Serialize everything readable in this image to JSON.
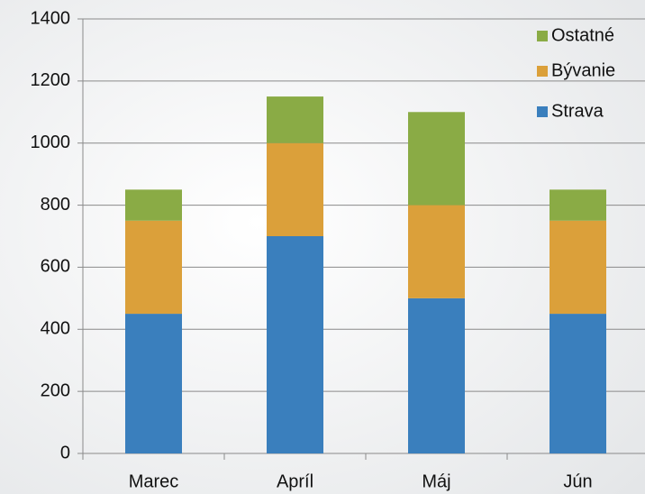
{
  "chart_data": {
    "type": "stacked_bar",
    "categories": [
      "Marec",
      "Apríl",
      "Máj",
      "Jún"
    ],
    "series": [
      {
        "name": "Strava",
        "color": "#3a7fbd",
        "values": [
          450,
          700,
          500,
          450
        ]
      },
      {
        "name": "Bývanie",
        "color": "#dba03a",
        "values": [
          300,
          300,
          300,
          300
        ]
      },
      {
        "name": "Ostatné",
        "color": "#8aab45",
        "values": [
          100,
          150,
          300,
          100
        ]
      }
    ],
    "ylim": [
      0,
      1400
    ],
    "yticks": [
      0,
      200,
      400,
      600,
      800,
      1000,
      1200,
      1400
    ],
    "grid": true,
    "legend": "top-right"
  }
}
